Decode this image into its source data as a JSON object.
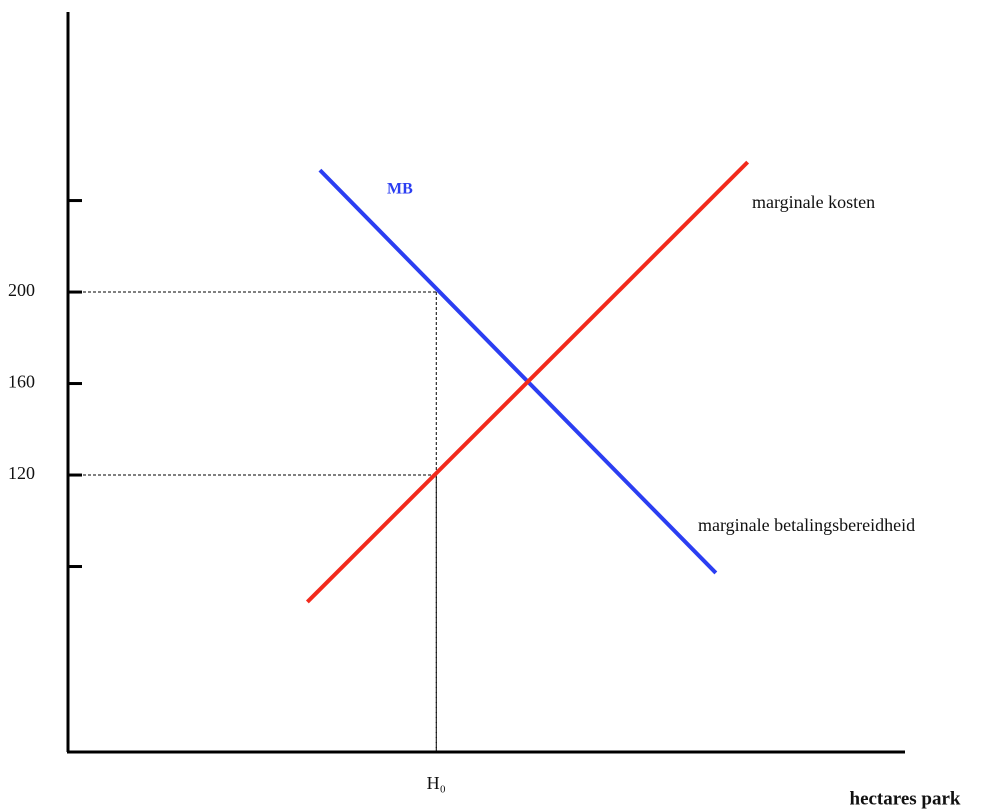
{
  "chart_data": {
    "type": "line",
    "x_label": "hectares park",
    "xlim": [
      0,
      100
    ],
    "xticks": [
      {
        "value": 44,
        "label": "H₀"
      }
    ],
    "ylim": [
      0,
      322
    ],
    "yticks": [
      120,
      160,
      200
    ],
    "minor_yticks": [
      80,
      240
    ],
    "series": [
      {
        "name": "marginale betalingsbereidheid",
        "color": "#2b3ef2",
        "x": [
          30.1,
          77.4
        ],
        "values": [
          253.3,
          77.2
        ]
      },
      {
        "name": "marginale kosten",
        "color": "#f22a1c",
        "x": [
          28.6,
          81.2
        ],
        "values": [
          64.5,
          256.8
        ]
      }
    ],
    "annotations": [
      "MB"
    ],
    "guides": [
      {
        "x": 44,
        "y": 200
      },
      {
        "x": 44,
        "y": 120
      }
    ]
  }
}
